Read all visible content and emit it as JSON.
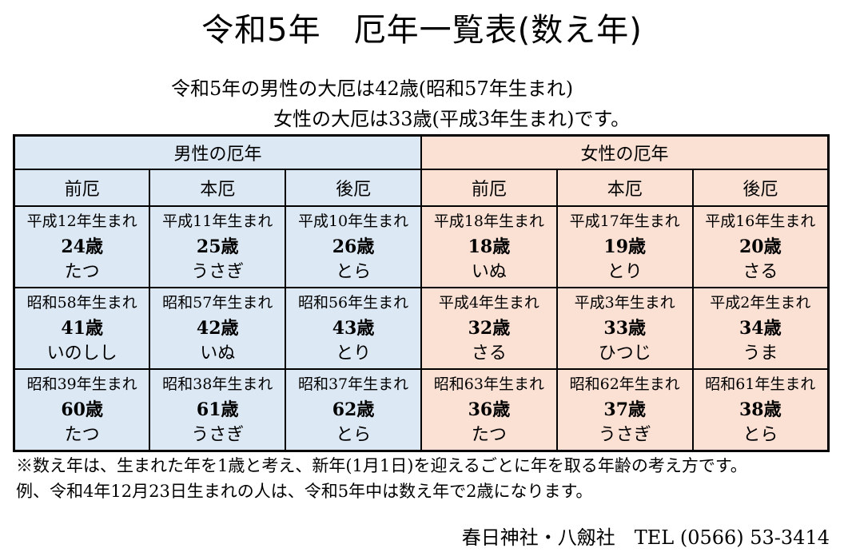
{
  "title": "令和5年　厄年一覧表(数え年)",
  "subtitle_line1": "令和5年の男性の大厄は42歳(昭和57年生まれ)",
  "subtitle_line2": "女性の大厄は33歳(平成3年生まれ)です。",
  "groups": {
    "male": "男性の厄年",
    "female": "女性の厄年"
  },
  "columns": [
    "前厄",
    "本厄",
    "後厄",
    "前厄",
    "本厄",
    "後厄"
  ],
  "rows": [
    [
      {
        "born": "平成12年生まれ",
        "age": "24歳",
        "zodiac": "たつ"
      },
      {
        "born": "平成11年生まれ",
        "age": "25歳",
        "zodiac": "うさぎ"
      },
      {
        "born": "平成10年生まれ",
        "age": "26歳",
        "zodiac": "とら"
      },
      {
        "born": "平成18年生まれ",
        "age": "18歳",
        "zodiac": "いぬ"
      },
      {
        "born": "平成17年生まれ",
        "age": "19歳",
        "zodiac": "とり"
      },
      {
        "born": "平成16年生まれ",
        "age": "20歳",
        "zodiac": "さる"
      }
    ],
    [
      {
        "born": "昭和58年生まれ",
        "age": "41歳",
        "zodiac": "いのしし"
      },
      {
        "born": "昭和57年生まれ",
        "age": "42歳",
        "zodiac": "いぬ"
      },
      {
        "born": "昭和56年生まれ",
        "age": "43歳",
        "zodiac": "とり"
      },
      {
        "born": "平成4年生まれ",
        "age": "32歳",
        "zodiac": "さる"
      },
      {
        "born": "平成3年生まれ",
        "age": "33歳",
        "zodiac": "ひつじ"
      },
      {
        "born": "平成2年生まれ",
        "age": "34歳",
        "zodiac": "うま"
      }
    ],
    [
      {
        "born": "昭和39年生まれ",
        "age": "60歳",
        "zodiac": "たつ"
      },
      {
        "born": "昭和38年生まれ",
        "age": "61歳",
        "zodiac": "うさぎ"
      },
      {
        "born": "昭和37年生まれ",
        "age": "62歳",
        "zodiac": "とら"
      },
      {
        "born": "昭和63年生まれ",
        "age": "36歳",
        "zodiac": "たつ"
      },
      {
        "born": "昭和62年生まれ",
        "age": "37歳",
        "zodiac": "うさぎ"
      },
      {
        "born": "昭和61年生まれ",
        "age": "38歳",
        "zodiac": "とら"
      }
    ]
  ],
  "note_line1": "※数え年は、生まれた年を1歳と考え、新年(1月1日)を迎えるごとに年を取る年齢の考え方です。",
  "note_line2": "例、令和4年12月23日生まれの人は、令和5年中は数え年で2歳になります。",
  "footer": "春日神社・八劔社　TEL (0566) 53-3414",
  "colors": {
    "male_bg": "#dce8f4",
    "female_bg": "#fbe0d4"
  }
}
